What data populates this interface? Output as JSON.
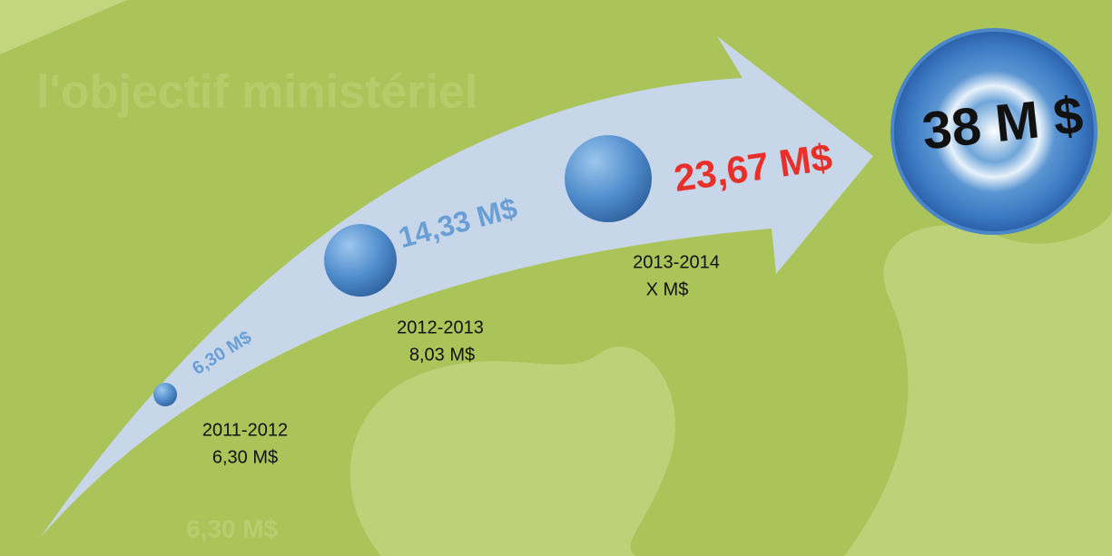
{
  "background_text": {
    "title": "l'objectif ministériel",
    "ghost": "6,30 M$"
  },
  "target": "38 M $",
  "arrow_labels": [
    "6,30 M$",
    "14,33 M$",
    "23,67 M$"
  ],
  "milestones": [
    {
      "period": "2011-2012",
      "amount": "6,30 M$"
    },
    {
      "period": "2012-2013",
      "amount": "8,03 M$"
    },
    {
      "period": "2013-2014",
      "amount": "X M$"
    }
  ]
}
